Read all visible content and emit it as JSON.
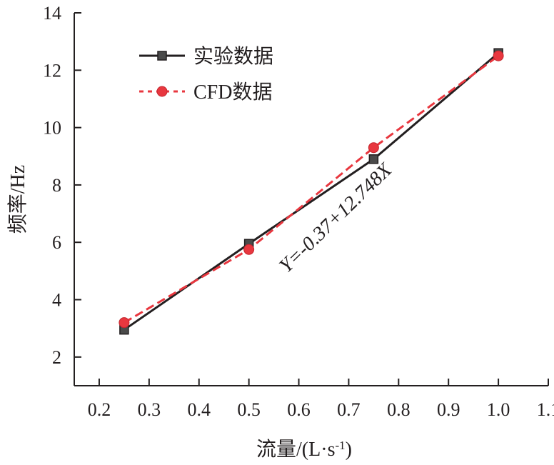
{
  "chart_data": {
    "type": "line",
    "xlabel_main": "流量/(L·s",
    "xlabel_sup": "-1",
    "xlabel_end": ")",
    "ylabel": "频率/Hz",
    "xlim": [
      0.15,
      1.1
    ],
    "ylim": [
      1.0,
      14.0
    ],
    "x_ticks": [
      "0.2",
      "0.3",
      "0.4",
      "0.5",
      "0.6",
      "0.7",
      "0.8",
      "0.9",
      "1.0",
      "1.1"
    ],
    "y_ticks": [
      "2",
      "4",
      "6",
      "8",
      "10",
      "12",
      "14"
    ],
    "x": [
      0.25,
      0.5,
      0.75,
      1.0
    ],
    "series": [
      {
        "name": "实验数据",
        "values": [
          2.95,
          5.95,
          8.9,
          12.6
        ],
        "color": "#231f20",
        "marker": "square",
        "line": "solid"
      },
      {
        "name": "CFD数据",
        "values": [
          3.2,
          5.75,
          9.3,
          12.5
        ],
        "color": "#e8373f",
        "marker": "circle",
        "line": "dashed"
      }
    ],
    "legend_position": "top-left",
    "annotation": "Y=-0.37+12.748X",
    "grid": false
  }
}
